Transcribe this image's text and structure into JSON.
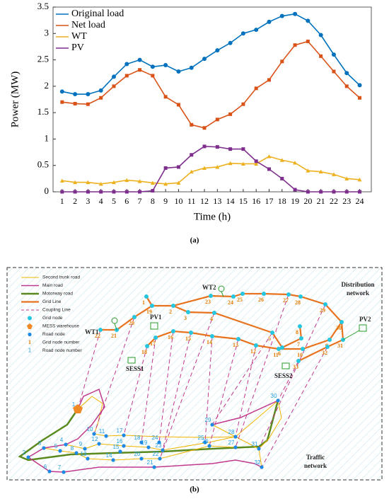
{
  "chart_data": {
    "type": "line",
    "xlabel": "Time (h)",
    "ylabel": "Power (MW)",
    "caption": "(a)",
    "x": [
      1,
      2,
      3,
      4,
      5,
      6,
      7,
      8,
      9,
      10,
      11,
      12,
      13,
      14,
      15,
      16,
      17,
      18,
      19,
      20,
      21,
      22,
      23,
      24
    ],
    "xlim": [
      0.3,
      24.9
    ],
    "xticks": [
      1,
      2,
      3,
      4,
      5,
      6,
      7,
      8,
      9,
      10,
      11,
      12,
      13,
      14,
      15,
      16,
      17,
      18,
      19,
      20,
      21,
      22,
      23,
      24
    ],
    "ylim": [
      0,
      3.5
    ],
    "yticks": [
      0,
      0.5,
      1,
      1.5,
      2,
      2.5,
      3,
      3.5
    ],
    "legend": "upper left",
    "series": [
      {
        "name": "Original load",
        "color": "#0072bd",
        "marker": "circle",
        "values": [
          1.9,
          1.85,
          1.85,
          1.92,
          2.18,
          2.42,
          2.5,
          2.37,
          2.4,
          2.28,
          2.35,
          2.52,
          2.68,
          2.82,
          3.0,
          3.07,
          3.22,
          3.33,
          3.37,
          3.24,
          2.97,
          2.6,
          2.25,
          2.02
        ]
      },
      {
        "name": "Net load",
        "color": "#d95319",
        "marker": "square",
        "values": [
          1.7,
          1.67,
          1.66,
          1.78,
          2.0,
          2.2,
          2.31,
          2.2,
          1.8,
          1.65,
          1.27,
          1.21,
          1.37,
          1.47,
          1.66,
          1.96,
          2.12,
          2.47,
          2.78,
          2.85,
          2.57,
          2.28,
          2.0,
          1.78
        ]
      },
      {
        "name": "WT",
        "color": "#edb120",
        "marker": "triangle",
        "values": [
          0.21,
          0.18,
          0.18,
          0.15,
          0.18,
          0.22,
          0.2,
          0.17,
          0.15,
          0.17,
          0.38,
          0.45,
          0.47,
          0.54,
          0.53,
          0.53,
          0.67,
          0.6,
          0.55,
          0.4,
          0.38,
          0.33,
          0.25,
          0.23
        ]
      },
      {
        "name": "PV",
        "color": "#7e2f8e",
        "marker": "square",
        "values": [
          0,
          0,
          0,
          0,
          0,
          0,
          0,
          0.02,
          0.45,
          0.47,
          0.7,
          0.86,
          0.85,
          0.81,
          0.81,
          0.58,
          0.43,
          0.25,
          0.04,
          0,
          0,
          0,
          0,
          0
        ]
      }
    ]
  },
  "diagram": {
    "caption": "(b)",
    "legend": [
      {
        "label": "Second trunk road"
      },
      {
        "label": "Main road"
      },
      {
        "label": "Motorway road"
      },
      {
        "label": "Grid Line"
      },
      {
        "label": "Coupling Line"
      },
      {
        "label": "Grid node"
      },
      {
        "label": "MESS warehouse"
      },
      {
        "label": "Road node"
      },
      {
        "label": "Grid node number",
        "sample": "1"
      },
      {
        "label": "Road node number",
        "sample": "1"
      }
    ],
    "grid_nodes": [
      1,
      2,
      3,
      4,
      5,
      6,
      7,
      8,
      9,
      10,
      11,
      12,
      13,
      14,
      15,
      16,
      17,
      18,
      19,
      20,
      21,
      22,
      23,
      24,
      25,
      26,
      27,
      28,
      29,
      30,
      31,
      32,
      33
    ],
    "road_nodes": [
      1,
      2,
      3,
      4,
      5,
      6,
      7,
      8,
      9,
      10,
      11,
      12,
      13,
      14,
      15,
      16,
      17,
      18,
      19,
      20,
      21,
      22,
      23,
      24,
      25,
      26,
      27,
      28,
      29,
      30,
      31,
      32
    ],
    "devices": {
      "wt1": "WT1",
      "wt2": "WT2",
      "pv1": "PV1",
      "pv2": "PV2",
      "sess1": "SESS1",
      "sess2": "SESS2"
    },
    "regions": {
      "distribution": [
        "Distribution",
        "network"
      ],
      "traffic": [
        "Traffic",
        "network"
      ]
    }
  }
}
